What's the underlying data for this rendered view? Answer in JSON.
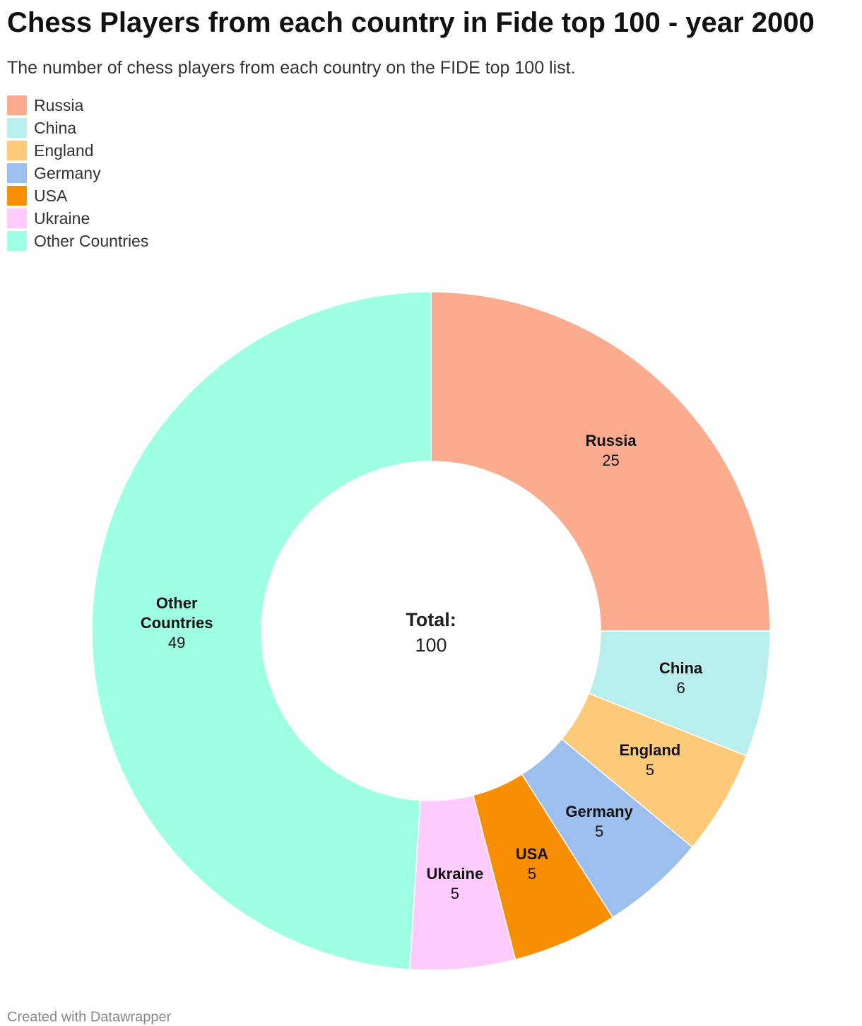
{
  "chart_data": {
    "type": "donut",
    "title": "Chess Players from each country in Fide top 100 - year 2000",
    "subtitle": "The number of chess players from each country on the FIDE top 100 list.",
    "categories": [
      "Russia",
      "China",
      "England",
      "Germany",
      "USA",
      "Ukraine",
      "Other Countries"
    ],
    "values": [
      25,
      6,
      5,
      5,
      5,
      5,
      49
    ],
    "colors": [
      "#fcac8e",
      "#b8eeec",
      "#fdca7a",
      "#9dbfee",
      "#f88f02",
      "#fecbfc",
      "#9fffe3"
    ],
    "center_label": "Total:",
    "total": 100,
    "legend": "top-left",
    "credit": "Created with Datawrapper"
  }
}
